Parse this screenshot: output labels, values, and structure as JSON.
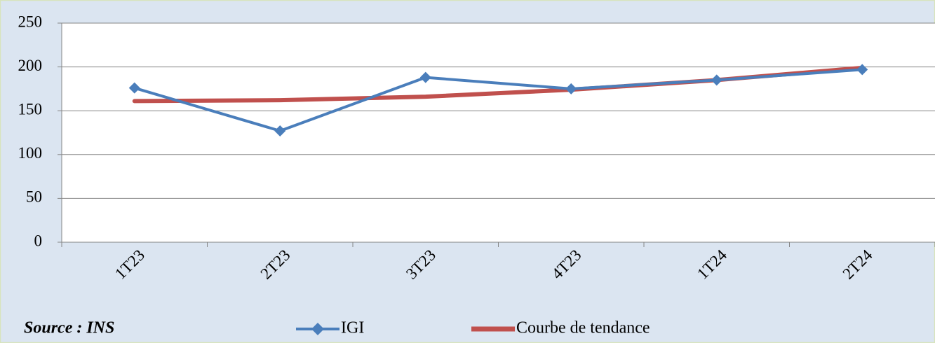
{
  "chart_data": {
    "type": "line",
    "categories": [
      "1T23",
      "2T23",
      "3T23",
      "4T23",
      "1T24",
      "2T24"
    ],
    "series": [
      {
        "name": "IGI",
        "color": "#4a7ebb",
        "marker": "diamond",
        "values": [
          176,
          127,
          188,
          175,
          185,
          197
        ]
      },
      {
        "name": "Courbe de tendance",
        "color": "#c0504d",
        "marker": "none",
        "values": [
          161,
          162,
          166,
          174,
          185,
          199
        ]
      }
    ],
    "ylim": [
      0,
      250
    ],
    "yticks": [
      0,
      50,
      100,
      150,
      200,
      250
    ],
    "grid": true,
    "legend": "bottom",
    "source": "Source : INS"
  }
}
